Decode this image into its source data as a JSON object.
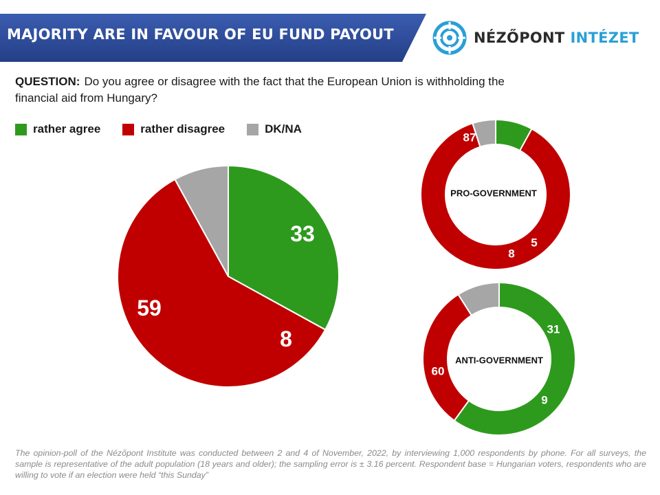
{
  "header": {
    "title": "MAJORITY ARE IN FAVOUR OF EU FUND PAYOUT",
    "logo_text_a": "NÉZŐPONT",
    "logo_text_b": "INTÉZET",
    "band_color": "#2f4c9b",
    "logo_color": "#2a9fd6"
  },
  "question": {
    "label": "QUESTION:",
    "text": "Do you agree or disagree with the fact that the European Union is withholding the financial aid from Hungary?"
  },
  "legend": [
    {
      "label": "rather agree",
      "color": "#2e9a1d"
    },
    {
      "label": "rather disagree",
      "color": "#c00000"
    },
    {
      "label": "DK/NA",
      "color": "#a6a6a6"
    }
  ],
  "chart_data": [
    {
      "type": "pie",
      "title": "",
      "labels": [
        "rather agree",
        "rather disagree",
        "DK/NA"
      ],
      "values": [
        33,
        59,
        8
      ],
      "colors": [
        "#2e9a1d",
        "#c00000",
        "#a6a6a6"
      ]
    },
    {
      "type": "pie",
      "variant": "donut",
      "title": "PRO-GOVERNMENT",
      "labels": [
        "rather agree",
        "rather disagree",
        "DK/NA"
      ],
      "values": [
        8,
        87,
        5
      ],
      "colors": [
        "#2e9a1d",
        "#c00000",
        "#a6a6a6"
      ]
    },
    {
      "type": "pie",
      "variant": "donut",
      "title": "ANTI-GOVERNMENT",
      "labels": [
        "rather agree",
        "rather disagree",
        "DK/NA"
      ],
      "values": [
        60,
        31,
        9
      ],
      "colors": [
        "#2e9a1d",
        "#c00000",
        "#a6a6a6"
      ]
    }
  ],
  "footnote": "The opinion-poll of the Nézőpont Institute was conducted between 2 and 4 of November, 2022, by interviewing 1,000 respondents by phone. For all surveys, the sample is representative of the adult population (18 years and older); the sampling error is ± 3.16 percent. Respondent base = Hungarian voters, respondents who are willing to vote if an election were held “this Sunday”"
}
